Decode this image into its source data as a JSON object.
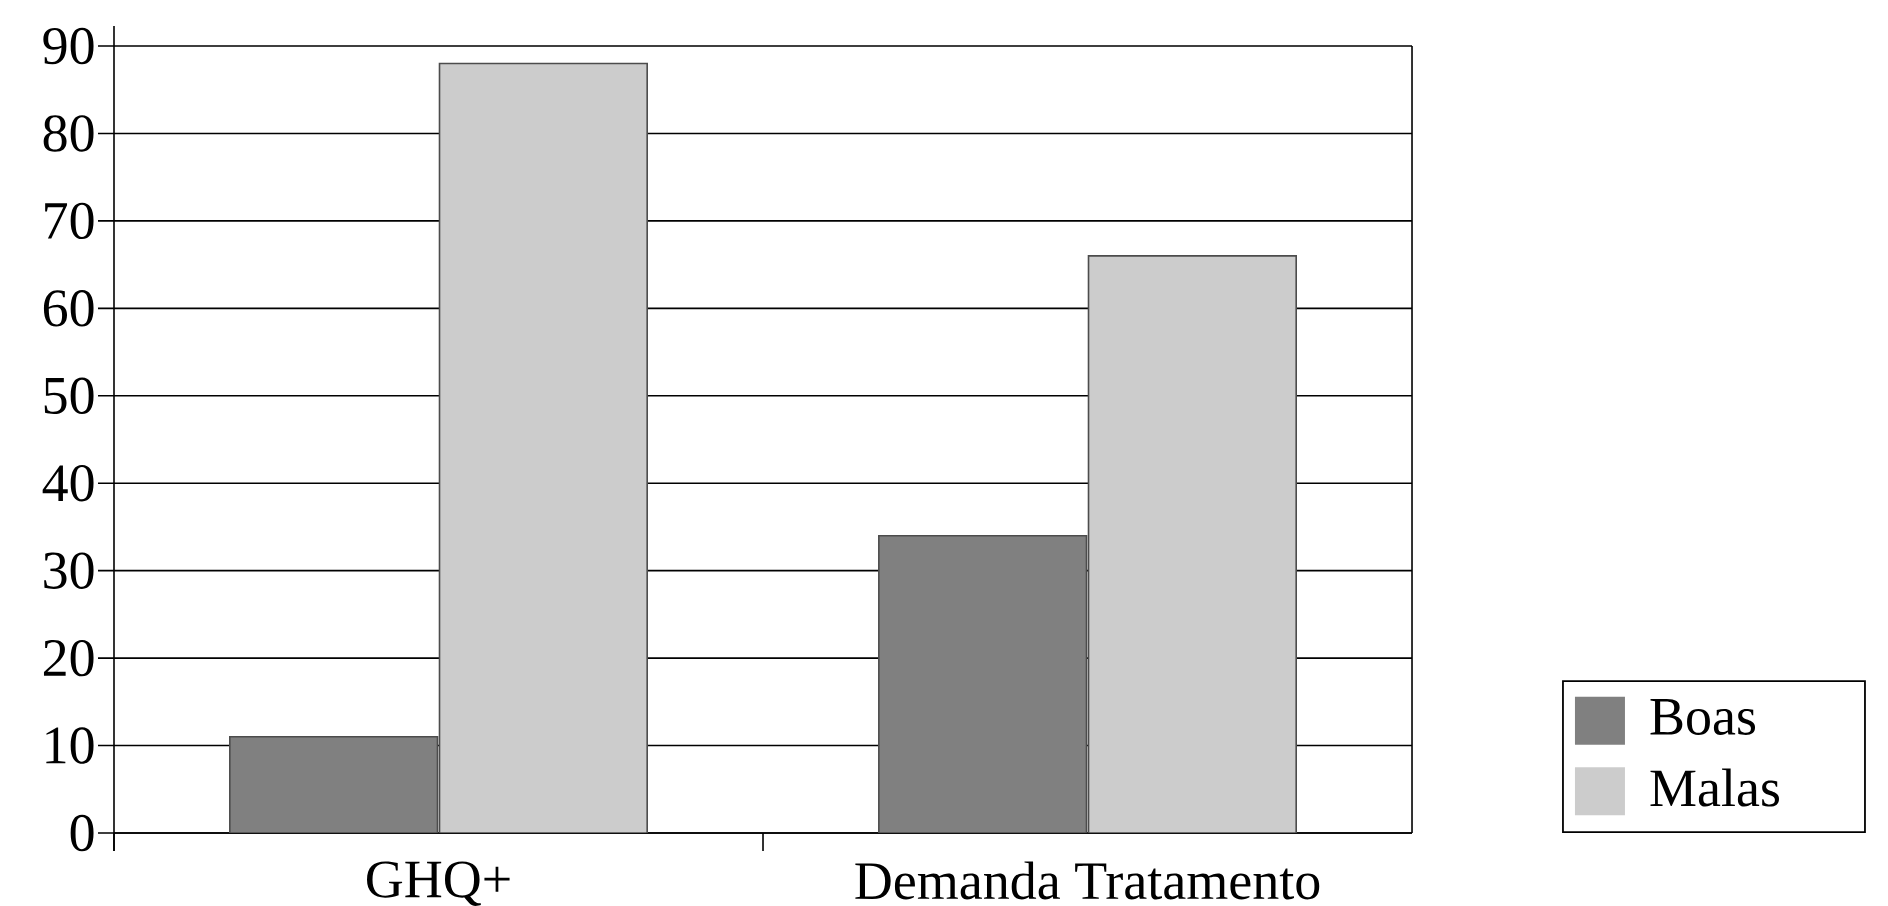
{
  "chart_data": {
    "type": "bar",
    "categories": [
      "GHQ+",
      "Demanda Tratamento"
    ],
    "series": [
      {
        "name": "Boas",
        "color": "#808080",
        "values": [
          11,
          34
        ]
      },
      {
        "name": "Malas",
        "color": "#cccccc",
        "values": [
          88,
          66
        ]
      }
    ],
    "ylim": [
      0,
      90
    ],
    "yticks": [
      0,
      10,
      20,
      30,
      40,
      50,
      60,
      70,
      80,
      90
    ],
    "grid": "y",
    "legend": "right"
  }
}
